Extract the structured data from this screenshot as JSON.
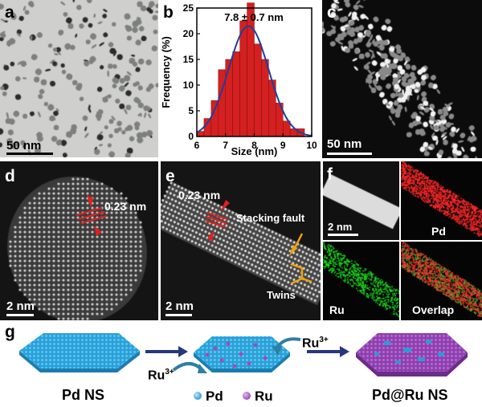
{
  "panels": {
    "a": {
      "label": "a",
      "scale": "50 nm"
    },
    "b": {
      "label": "b"
    },
    "c": {
      "label": "c",
      "scale": "50 nm"
    },
    "d": {
      "label": "d",
      "spacing": "0.23 nm",
      "scale": "2 nm"
    },
    "e": {
      "label": "e",
      "spacing": "0.23 nm",
      "defect": "Stacking fault",
      "twins": "Twins",
      "scale": "2 nm"
    },
    "f": {
      "label": "f",
      "scale": "2 nm",
      "pd": "Pd",
      "ru": "Ru",
      "overlap": "Overlap"
    },
    "g": {
      "label": "g",
      "ru_ion_1": "Ru",
      "ru_ion_2": "Ru",
      "charge": "3+",
      "pd_ns": "Pd NS",
      "legend_pd": "Pd",
      "legend_ru": "Ru",
      "product": "Pd@Ru NS"
    }
  },
  "colors": {
    "bar_red": "#d42020",
    "fit_blue": "#1f3f9a",
    "pd_blue": "#2aa0d8",
    "ru_purple": "#9a4fb8",
    "arrow_navy": "#27377e",
    "annot_orange": "#f2a20a"
  },
  "chart_data": {
    "type": "bar",
    "annotation": "7.8 ± 0.7 nm",
    "xlabel": "Size (nm)",
    "ylabel": "Frequency (%)",
    "xlim": [
      6,
      10
    ],
    "ylim": [
      0,
      25
    ],
    "xticks": [
      "6",
      "7",
      "8",
      "9",
      "10"
    ],
    "yticks": [
      "0",
      "5",
      "10",
      "15",
      "20",
      "25"
    ],
    "bin_width": 0.25,
    "bin_starts": [
      6.0,
      6.25,
      6.5,
      6.75,
      7.0,
      7.25,
      7.5,
      7.75,
      8.0,
      8.25,
      8.5,
      8.75,
      9.0,
      9.25,
      9.5,
      9.75
    ],
    "values": [
      1,
      3.5,
      7,
      13,
      15,
      16.5,
      22.5,
      26,
      18,
      15,
      11,
      6.5,
      3,
      1.5,
      1.5,
      0
    ],
    "fit": {
      "kind": "gaussian",
      "mean": 7.8,
      "sd": 0.7,
      "peak": 21.5
    }
  }
}
